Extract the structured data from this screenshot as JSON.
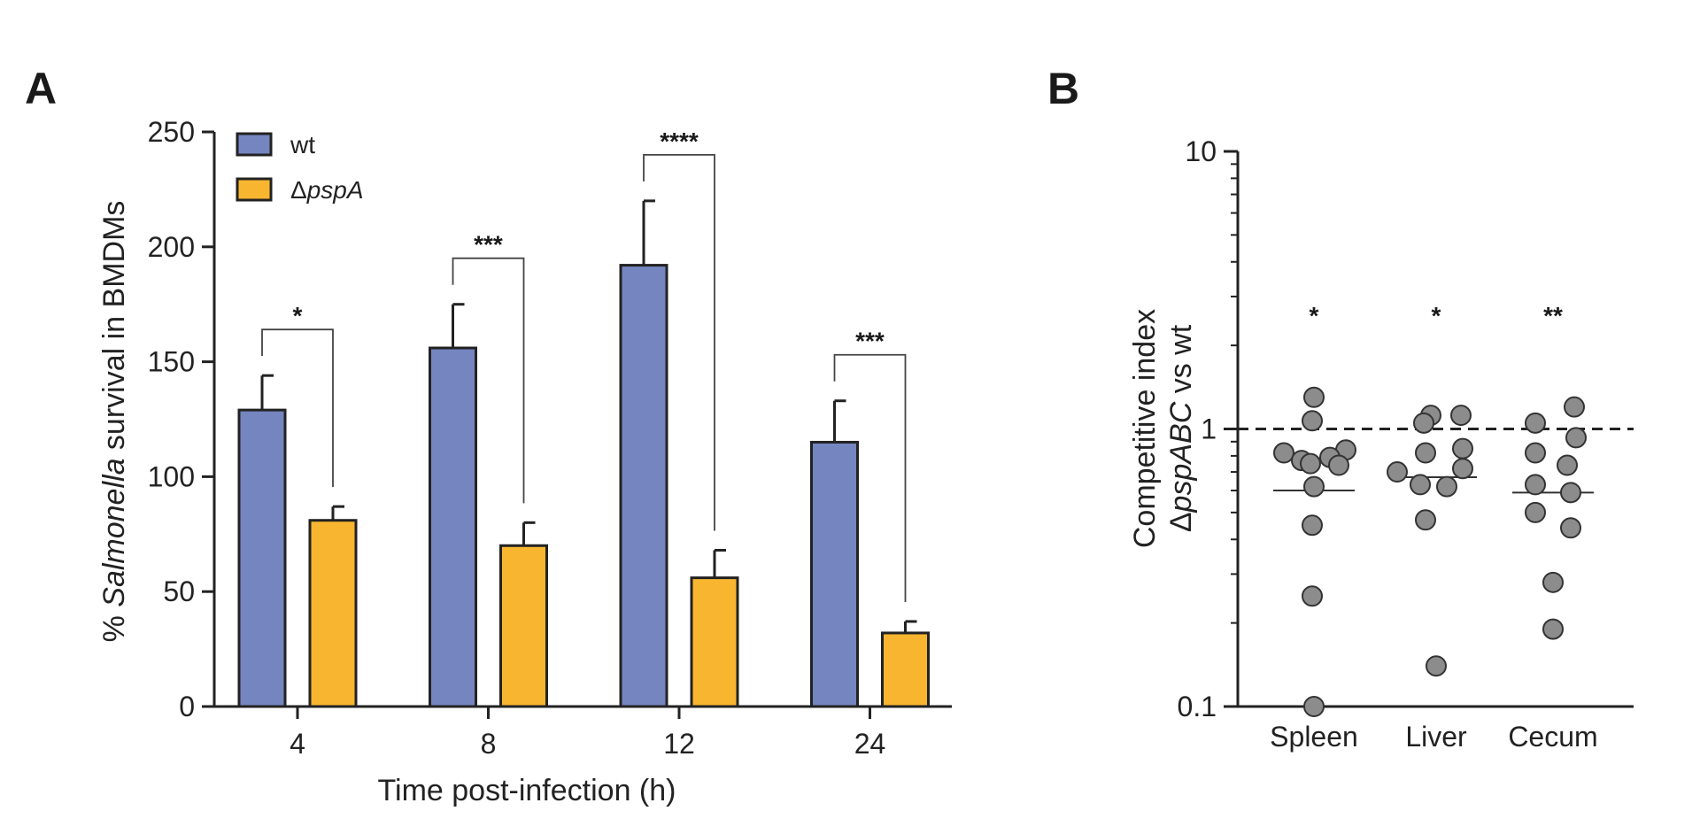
{
  "panels": {
    "a_label": "A",
    "b_label": "B"
  },
  "chart_data": [
    {
      "type": "bar",
      "panel": "A",
      "xlabel": "Time post-infection (h)",
      "ylabel": {
        "pre": "% ",
        "italic": "Salmonella",
        "post": " survival in BMDMs"
      },
      "ylim": [
        0,
        250
      ],
      "yticks": [
        "0",
        "50",
        "100",
        "150",
        "200",
        "250"
      ],
      "categories": [
        "4",
        "8",
        "12",
        "24"
      ],
      "series": [
        {
          "name": "wt",
          "name_prefix": "",
          "name_italic": "",
          "color": "#7585c0",
          "values": [
            129,
            156,
            192,
            115
          ],
          "errors": [
            15,
            19,
            28,
            18
          ]
        },
        {
          "name": "ΔpspA",
          "name_prefix": "Δ",
          "name_italic": "pspA",
          "color": "#f8b630",
          "values": [
            81,
            70,
            56,
            32
          ],
          "errors": [
            6,
            10,
            12,
            5
          ]
        }
      ],
      "significance": [
        "*",
        "***",
        "****",
        "***"
      ],
      "legend_position": "top-left",
      "grid": false
    },
    {
      "type": "scatter",
      "panel": "B",
      "ylabel_line1": "Competitive index",
      "ylabel_line2": {
        "pre": "Δ",
        "italic": "pspABC",
        "post": " vs wt"
      },
      "yscale": "log",
      "ylim": [
        0.1,
        10
      ],
      "yticks": [
        "0.1",
        "1",
        "10"
      ],
      "reference_line": 1,
      "categories": [
        "Spleen",
        "Liver",
        "Cecum"
      ],
      "points": [
        [
          1.3,
          1.07,
          0.84,
          0.82,
          0.79,
          0.77,
          0.75,
          0.74,
          0.62,
          0.45,
          0.25,
          0.1
        ],
        [
          1.12,
          1.12,
          1.05,
          0.85,
          0.82,
          0.72,
          0.7,
          0.63,
          0.62,
          0.47,
          0.14
        ],
        [
          1.2,
          1.05,
          0.93,
          0.82,
          0.74,
          0.63,
          0.59,
          0.5,
          0.44,
          0.28,
          0.19
        ]
      ],
      "medians": [
        0.6,
        0.67,
        0.59
      ],
      "significance": [
        "*",
        "*",
        "**"
      ],
      "point_color": "#8c8c8c",
      "grid": false
    }
  ]
}
